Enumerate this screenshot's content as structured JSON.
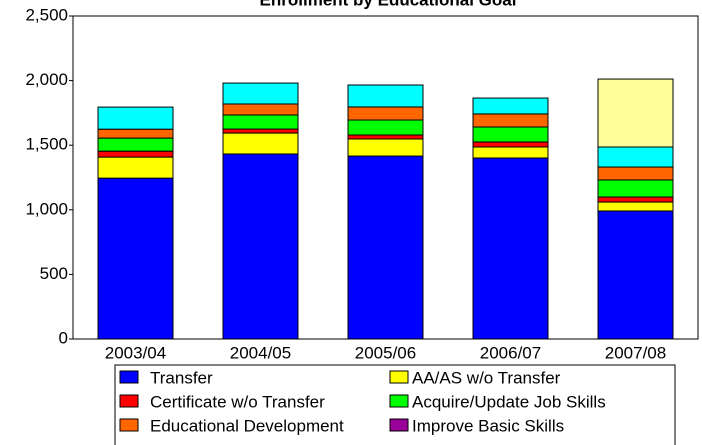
{
  "chart_data": {
    "type": "stacked_bar",
    "title": "Enrollment by Educational Goal",
    "categories": [
      "2003/04",
      "2004/05",
      "2005/06",
      "2006/07",
      "2007/08"
    ],
    "series": [
      {
        "name": "Transfer",
        "color": "#0000ff",
        "values": [
          1245,
          1432,
          1416,
          1401,
          991
        ]
      },
      {
        "name": "AA/AS w/o Transfer",
        "color": "#ffff00",
        "values": [
          163,
          162,
          132,
          85,
          69
        ]
      },
      {
        "name": "Certificate w/o Transfer",
        "color": "#ff0000",
        "values": [
          46,
          31,
          31,
          39,
          39
        ]
      },
      {
        "name": "Acquire/Update Job Skills",
        "color": "#00ff00",
        "values": [
          101,
          109,
          116,
          116,
          132
        ]
      },
      {
        "name": "Educational Development",
        "color": "#ff6600",
        "values": [
          69,
          85,
          101,
          101,
          100
        ]
      },
      {
        "name": "Improve Basic Skills",
        "color": "#990099",
        "values": [
          0,
          0,
          0,
          0,
          0
        ]
      },
      {
        "color": "#00ffff",
        "values": [
          171,
          162,
          170,
          123,
          155
        ]
      },
      {
        "color": "#ffff99",
        "values": [
          0,
          0,
          0,
          0,
          526
        ]
      }
    ],
    "ylim": [
      0,
      2500
    ],
    "yticks": [
      0,
      500,
      {
        "value": 1000,
        "label": "1,000"
      },
      {
        "value": 1500,
        "label": "1,500"
      },
      {
        "value": 2000,
        "label": "2,000"
      },
      {
        "value": 2500,
        "label": "2,500"
      }
    ]
  }
}
